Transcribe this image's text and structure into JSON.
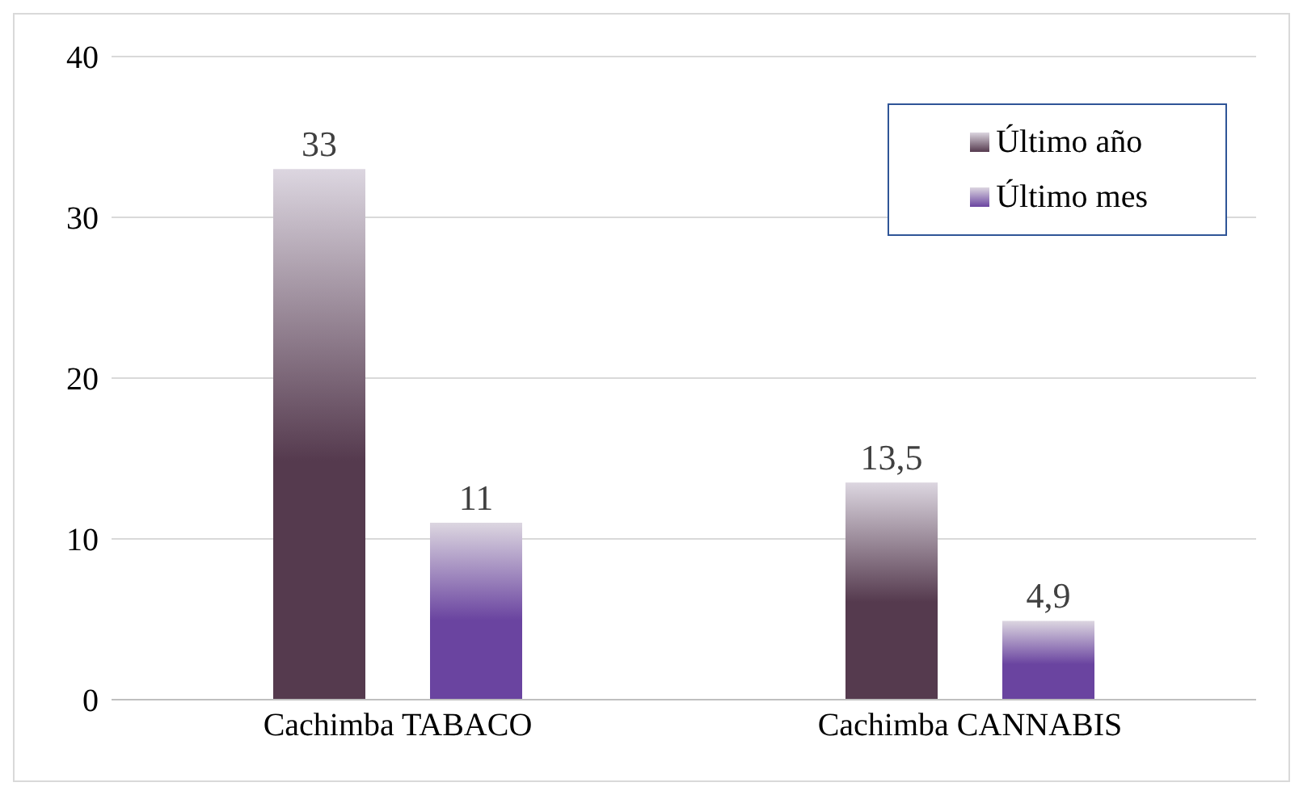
{
  "chart_data": {
    "type": "bar",
    "categories": [
      "Cachimba TABACO",
      "Cachimba CANNABIS"
    ],
    "series": [
      {
        "name": "Último año",
        "color": "#553a4e",
        "values": [
          33,
          13.5
        ],
        "value_labels": [
          "33",
          "13,5"
        ]
      },
      {
        "name": "Último mes",
        "color": "#6a44a0",
        "values": [
          11,
          4.9
        ],
        "value_labels": [
          "11",
          "4,9"
        ]
      }
    ],
    "ylim": [
      0,
      40
    ],
    "yticks": [
      0,
      10,
      20,
      30,
      40
    ],
    "grid": "y",
    "legend": "top right"
  }
}
